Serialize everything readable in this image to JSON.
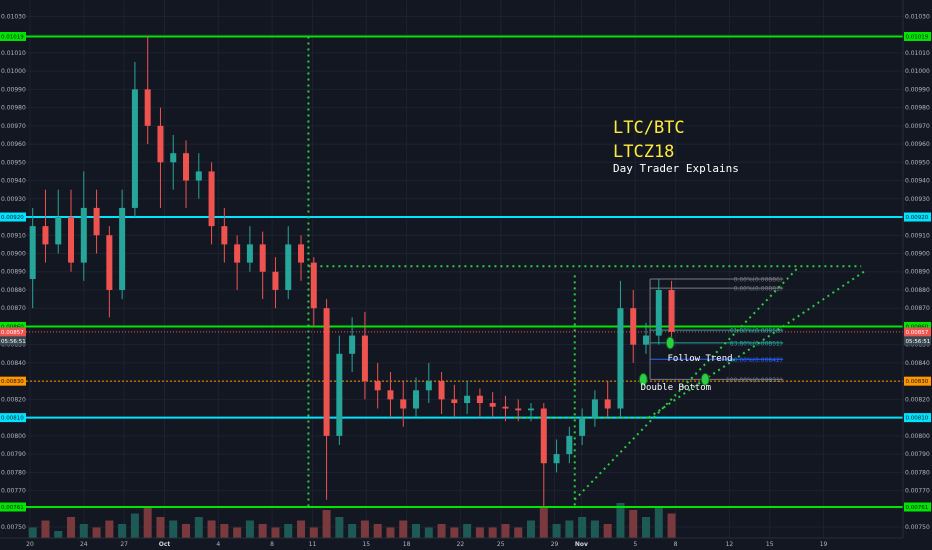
{
  "chart_data": {
    "type": "candlestick",
    "title": "LTC/BTC",
    "subtitle": "LTCZ18",
    "caption": "Day Trader Explains",
    "y_ticks": [
      0.0103,
      0.0102,
      0.0101,
      0.01,
      0.0099,
      0.0098,
      0.0097,
      0.0096,
      0.0095,
      0.0094,
      0.0093,
      0.0092,
      0.0091,
      0.009,
      0.0089,
      0.0088,
      0.0087,
      0.0086,
      0.0085,
      0.0084,
      0.0083,
      0.0082,
      0.0081,
      0.008,
      0.0079,
      0.0078,
      0.0077,
      0.0076,
      0.0075
    ],
    "y_tick_labels": [
      "0.01030",
      "0.01020",
      "0.01010",
      "0.01000",
      "0.00990",
      "0.00980",
      "0.00970",
      "0.00960",
      "0.00950",
      "0.00940",
      "0.00930",
      "0.00920",
      "0.00910",
      "0.00900",
      "0.00890",
      "0.00880",
      "0.00870",
      "0.00860",
      "0.00850",
      "0.00840",
      "0.00830",
      "0.00820",
      "0.00810",
      "0.00800",
      "0.00790",
      "0.00780",
      "0.00770",
      "0.00760",
      "0.00750"
    ],
    "ylim": [
      0.00744,
      0.01039
    ],
    "x_ticks": [
      {
        "label": "20",
        "day": 0
      },
      {
        "label": "24",
        "day": 4
      },
      {
        "label": "27",
        "day": 7
      },
      {
        "label": "Oct",
        "day": 10,
        "bold": true
      },
      {
        "label": "4",
        "day": 14
      },
      {
        "label": "8",
        "day": 18
      },
      {
        "label": "11",
        "day": 21
      },
      {
        "label": "15",
        "day": 25
      },
      {
        "label": "18",
        "day": 28
      },
      {
        "label": "22",
        "day": 32
      },
      {
        "label": "25",
        "day": 35
      },
      {
        "label": "29",
        "day": 39
      },
      {
        "label": "Nov",
        "day": 41,
        "bold": true
      },
      {
        "label": "5",
        "day": 45
      },
      {
        "label": "8",
        "day": 48
      },
      {
        "label": "12",
        "day": 52
      },
      {
        "label": "15",
        "day": 55
      },
      {
        "label": "19",
        "day": 59
      }
    ],
    "horizontal_levels": [
      {
        "value": 0.01019,
        "label": "0.01019",
        "color": "#00e600"
      },
      {
        "value": 0.0092,
        "label": "0.00920",
        "color": "#00e5ff"
      },
      {
        "value": 0.0086,
        "label": "0.00860",
        "color": "#00e600"
      },
      {
        "value": 0.0081,
        "label": "0.00810",
        "color": "#00e5ff"
      },
      {
        "value": 0.00761,
        "label": "0.00761",
        "color": "#00e600"
      }
    ],
    "current_price": {
      "value": 0.00857,
      "label": "0.00857",
      "countdown": "05:56:51"
    },
    "dotted_level": {
      "value": 0.0083,
      "label": "0.00830",
      "color": "#ff9800"
    },
    "fib_levels": [
      {
        "pct": "0.00%",
        "value": 0.00886,
        "label": "0.00%(0.00886)",
        "color": "#787b86"
      },
      {
        "pct": "0.00%",
        "value": 0.00881,
        "label": "0.00%(0.00881)",
        "color": "#787b86"
      },
      {
        "pct": "61.80%",
        "value": 0.00858,
        "label": "61.80%(0.00858)",
        "color": "#26a69a"
      },
      {
        "pct": "83.80%",
        "value": 0.00851,
        "label": "83.80%(0.00851)",
        "color": "#26a69a"
      },
      {
        "pct": "100.00%",
        "value": 0.00842,
        "label": "100.00%(0.00842)",
        "color": "#2962ff"
      },
      {
        "pct": "100.00%",
        "value": 0.00831,
        "label": "100.00%(0.00831)",
        "color": "#787b86"
      }
    ],
    "annotations": [
      {
        "text": "Follow Trend",
        "day": 47.4,
        "value": 0.00846
      },
      {
        "text": "Double Bottom",
        "day": 45.4,
        "value": 0.0083
      }
    ],
    "candles": [
      [
        0.00886,
        0.00915,
        0.0087,
        0.00925
      ],
      [
        0.00915,
        0.00905,
        0.00895,
        0.00935
      ],
      [
        0.00905,
        0.0092,
        0.009,
        0.00935
      ],
      [
        0.0092,
        0.00895,
        0.0089,
        0.00935
      ],
      [
        0.00895,
        0.00925,
        0.00885,
        0.00945
      ],
      [
        0.00925,
        0.0091,
        0.009,
        0.00935
      ],
      [
        0.0091,
        0.0088,
        0.00865,
        0.00915
      ],
      [
        0.0088,
        0.00925,
        0.00875,
        0.00935
      ],
      [
        0.00925,
        0.0099,
        0.0092,
        0.01005
      ],
      [
        0.0099,
        0.0097,
        0.0096,
        0.01019
      ],
      [
        0.0097,
        0.0095,
        0.00925,
        0.0098
      ],
      [
        0.0095,
        0.00955,
        0.00935,
        0.00965
      ],
      [
        0.00955,
        0.0094,
        0.00925,
        0.00962
      ],
      [
        0.0094,
        0.00945,
        0.0093,
        0.00955
      ],
      [
        0.00945,
        0.00915,
        0.00905,
        0.0095
      ],
      [
        0.00915,
        0.00905,
        0.00895,
        0.00925
      ],
      [
        0.00905,
        0.00895,
        0.0088,
        0.0091
      ],
      [
        0.00895,
        0.00905,
        0.0089,
        0.00915
      ],
      [
        0.00905,
        0.0089,
        0.00875,
        0.00912
      ],
      [
        0.0089,
        0.0088,
        0.0087,
        0.00898
      ],
      [
        0.0088,
        0.00905,
        0.00875,
        0.00915
      ],
      [
        0.00905,
        0.00895,
        0.00885,
        0.0091
      ],
      [
        0.00895,
        0.0087,
        0.0086,
        0.00898
      ],
      [
        0.0087,
        0.008,
        0.00765,
        0.00875
      ],
      [
        0.008,
        0.00845,
        0.00795,
        0.00855
      ],
      [
        0.00845,
        0.00855,
        0.00835,
        0.00865
      ],
      [
        0.00855,
        0.0083,
        0.0082,
        0.00868
      ],
      [
        0.0083,
        0.00825,
        0.00815,
        0.0084
      ],
      [
        0.00825,
        0.0082,
        0.0081,
        0.00835
      ],
      [
        0.0082,
        0.00815,
        0.00805,
        0.0083
      ],
      [
        0.00815,
        0.00825,
        0.0081,
        0.00832
      ],
      [
        0.00825,
        0.0083,
        0.00818,
        0.0084
      ],
      [
        0.0083,
        0.0082,
        0.00812,
        0.00835
      ],
      [
        0.0082,
        0.00818,
        0.0081,
        0.00828
      ],
      [
        0.00818,
        0.00822,
        0.00812,
        0.0083
      ],
      [
        0.00822,
        0.00818,
        0.0081,
        0.00826
      ],
      [
        0.00818,
        0.00816,
        0.0081,
        0.00824
      ],
      [
        0.00816,
        0.00815,
        0.00808,
        0.00822
      ],
      [
        0.00815,
        0.00814,
        0.00808,
        0.0082
      ],
      [
        0.00814,
        0.00815,
        0.00808,
        0.00818
      ],
      [
        0.00815,
        0.00785,
        0.00761,
        0.00818
      ],
      [
        0.00785,
        0.0079,
        0.0078,
        0.00798
      ],
      [
        0.0079,
        0.008,
        0.00785,
        0.00805
      ],
      [
        0.008,
        0.0081,
        0.00795,
        0.00815
      ],
      [
        0.0081,
        0.0082,
        0.00805,
        0.00825
      ],
      [
        0.0082,
        0.00815,
        0.0081,
        0.0083
      ],
      [
        0.00815,
        0.0087,
        0.0081,
        0.00885
      ],
      [
        0.0087,
        0.0085,
        0.0084,
        0.0088
      ],
      [
        0.0085,
        0.00855,
        0.00845,
        0.00862
      ],
      [
        0.00855,
        0.0088,
        0.0085,
        0.00886
      ],
      [
        0.0088,
        0.00857,
        0.00852,
        0.00885
      ]
    ],
    "candle_start_day": 0.2,
    "candle_step": 0.95,
    "volumes": [
      3,
      5,
      2,
      6,
      4,
      3,
      5,
      4,
      7,
      9,
      6,
      5,
      4,
      6,
      5,
      4,
      3,
      5,
      4,
      3,
      4,
      5,
      3,
      8,
      6,
      4,
      5,
      4,
      3,
      5,
      4,
      3,
      4,
      3,
      4,
      3,
      3,
      4,
      3,
      5,
      9,
      4,
      5,
      6,
      5,
      4,
      10,
      8,
      6,
      9,
      7
    ]
  }
}
